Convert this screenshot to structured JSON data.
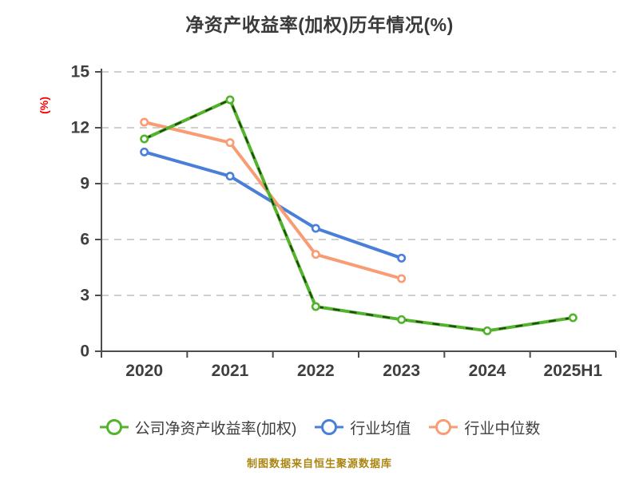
{
  "title": "净资产收益率(加权)历年情况(%)",
  "caption": "制图数据来自恒生聚源数据库",
  "colors": {
    "background": "#ffffff",
    "title": "#3a3a3a",
    "tick_labels": "#3f3f3f",
    "axis": "#4d4d4d",
    "gridline": "#cfcfcf",
    "caption": "#ab8511",
    "ylabel": "#ff0000",
    "marker_fill": "#ffffff"
  },
  "chart_data": {
    "type": "line",
    "title": "净资产收益率(加权)历年情况(%)",
    "ylabel": "(%)",
    "xlabel": "",
    "categories": [
      "2020",
      "2021",
      "2022",
      "2023",
      "2024",
      "2025H1"
    ],
    "series": [
      {
        "name": "公司净资产收益率(加权)",
        "color": "#53b32c",
        "overlay_dash_color": "#1d470d",
        "values": [
          11.4,
          13.5,
          2.4,
          1.7,
          1.1,
          1.8
        ]
      },
      {
        "name": "行业均值",
        "color": "#4a7fd9",
        "values": [
          10.7,
          9.4,
          6.6,
          5.0,
          null,
          null
        ]
      },
      {
        "name": "行业中位数",
        "color": "#f89c74",
        "values": [
          12.3,
          11.2,
          5.2,
          3.9,
          null,
          null
        ]
      }
    ],
    "ylim": [
      0,
      15
    ],
    "yticks": [
      0,
      3,
      6,
      9,
      12,
      15
    ],
    "grid": "horizontal-dashed",
    "legend_position": "bottom",
    "marker": "circle-white-fill"
  }
}
